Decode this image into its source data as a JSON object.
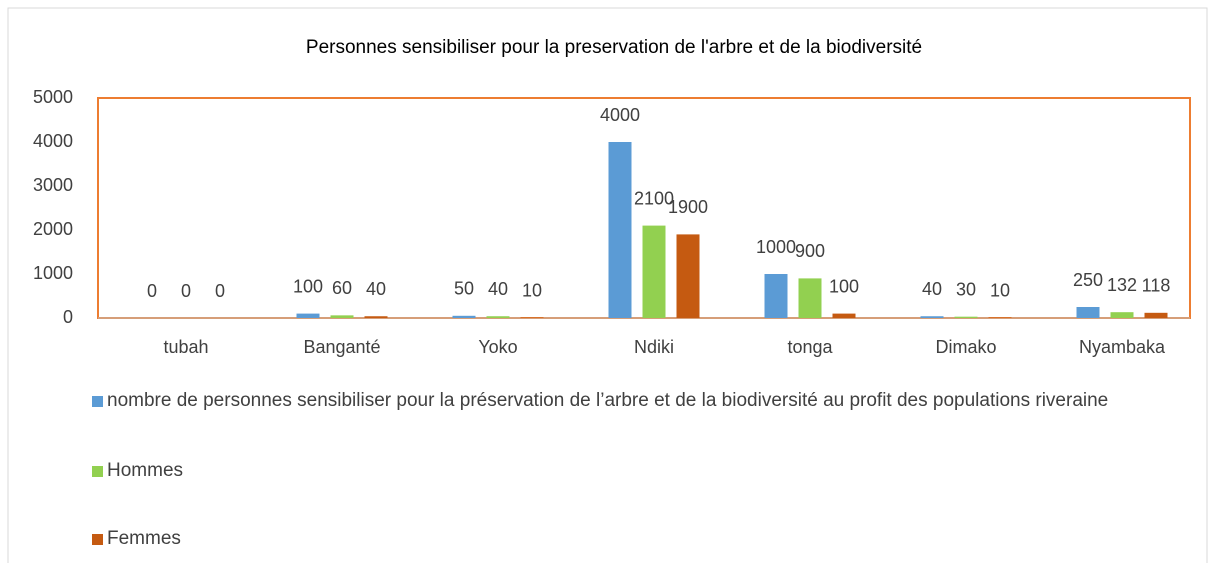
{
  "chart_data": {
    "type": "bar",
    "title": "Personnes sensibiliser pour la preservation de l'arbre et de la biodiversité",
    "categories": [
      "tubah",
      "Banganté",
      "Yoko",
      "Ndiki",
      "tonga",
      "Dimako",
      "Nyambaka"
    ],
    "series": [
      {
        "name": "nombre de personnes sensibiliser pour la préservation de l’arbre et de la biodiversité au profit des populations riveraine",
        "color": "#5b9bd5",
        "values": [
          0,
          100,
          50,
          4000,
          1000,
          40,
          250
        ]
      },
      {
        "name": "Hommes",
        "color": "#92d050",
        "values": [
          0,
          60,
          40,
          2100,
          900,
          30,
          132
        ]
      },
      {
        "name": "Femmes",
        "color": "#c55a11",
        "values": [
          0,
          40,
          10,
          1900,
          100,
          10,
          118
        ]
      }
    ],
    "ylim": [
      0,
      5000
    ],
    "yticks": [
      0,
      1000,
      2000,
      3000,
      4000,
      5000
    ]
  }
}
